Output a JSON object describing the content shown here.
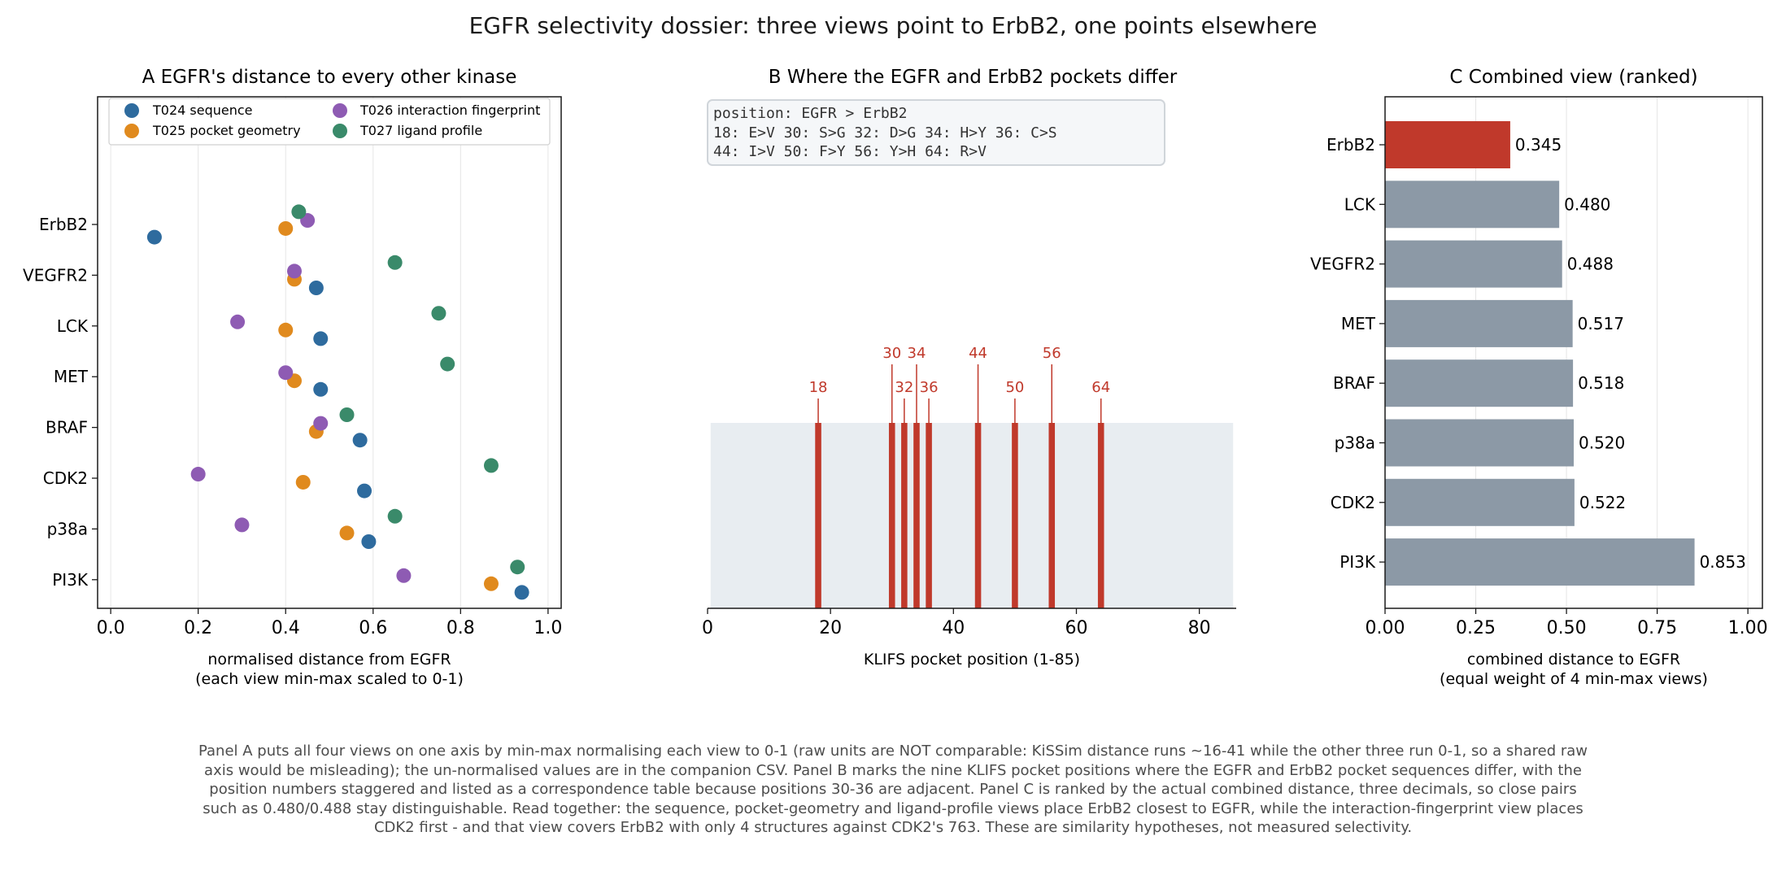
{
  "figure": {
    "title": "EGFR selectivity dossier: three views point to ErbB2, one points elsewhere",
    "caption": "Panel A puts all four views on one axis by min-max normalising each view to 0-1 (raw units are NOT comparable: KiSSim distance runs ~16-41 while the other three run 0-1, so a shared raw axis would be misleading); the un-normalised values are in the companion CSV. Panel B marks the nine KLIFS pocket positions where the EGFR and ErbB2 pocket sequences differ, with the position numbers staggered and listed as a correspondence table because positions 30-36 are adjacent. Panel C is ranked by the actual combined distance, three decimals, so close pairs such as 0.480/0.488 stay distinguishable. Read together: the sequence, pocket-geometry and ligand-profile views place ErbB2 closest to EGFR, while the interaction-fingerprint view places CDK2 first - and that view covers ErbB2 with only 4 structures against CDK2's 763. These are similarity hypotheses, not measured selectivity."
  },
  "chart_data": [
    {
      "panel": "A",
      "type": "scatter",
      "title": "A  EGFR's distance to every other kinase",
      "xlabel": "normalised distance from EGFR",
      "xlabel2": "(each view min-max scaled to 0-1)",
      "xlim": [
        -0.03,
        1.03
      ],
      "xticks": [
        "0.0",
        "0.2",
        "0.4",
        "0.6",
        "0.8",
        "1.0"
      ],
      "grid": "vertical",
      "legend_position": "top",
      "categories": [
        "ErbB2",
        "VEGFR2",
        "LCK",
        "MET",
        "BRAF",
        "CDK2",
        "p38a",
        "PI3K"
      ],
      "series": [
        {
          "name": "T024 sequence",
          "color": "#2e6b9e",
          "offset": 0.25,
          "values": [
            0.1,
            0.47,
            0.48,
            0.48,
            0.57,
            0.58,
            0.59,
            0.94
          ]
        },
        {
          "name": "T025 pocket geometry",
          "color": "#e08a1e",
          "offset": 0.08,
          "values": [
            0.4,
            0.42,
            0.4,
            0.42,
            0.47,
            0.44,
            0.54,
            0.87
          ]
        },
        {
          "name": "T026 interaction fingerprint",
          "color": "#8e5bb3",
          "offset": -0.08,
          "values": [
            0.45,
            0.42,
            0.29,
            0.4,
            0.48,
            0.2,
            0.3,
            0.67
          ]
        },
        {
          "name": "T027 ligand profile",
          "color": "#3a8a6a",
          "offset": -0.25,
          "values": [
            0.43,
            0.65,
            0.75,
            0.77,
            0.54,
            0.87,
            0.65,
            0.93
          ]
        }
      ]
    },
    {
      "panel": "B",
      "type": "bar",
      "title": "B  Where the EGFR and ErbB2 pockets differ",
      "xlabel": "KLIFS pocket position (1-85)",
      "xlim": [
        0,
        86
      ],
      "xticks": [
        "0",
        "20",
        "40",
        "60",
        "80"
      ],
      "pocket_range": [
        1,
        85
      ],
      "positions": [
        18,
        30,
        32,
        34,
        36,
        44,
        50,
        56,
        64
      ],
      "label_row": [
        "low",
        "high",
        "low",
        "high",
        "low",
        "high",
        "low",
        "high",
        "low"
      ],
      "position_labels": [
        "18",
        "30",
        "32",
        "34",
        "36",
        "44",
        "50",
        "56",
        "64"
      ],
      "bar_color": "#c0392b",
      "band_color": "#e8edf1",
      "table_lines": [
        "position: EGFR > ErbB2",
        "18: E>V  30: S>G  32: D>G  34: H>Y  36: C>S",
        "44: I>V  50: F>Y  56: Y>H  64: R>V"
      ]
    },
    {
      "panel": "C",
      "type": "bar",
      "orientation": "horizontal",
      "title": "C  Combined view (ranked)",
      "xlabel": "combined distance to EGFR",
      "xlabel2": "(equal weight of 4 min-max views)",
      "xlim": [
        0,
        1.04
      ],
      "xticks": [
        "0.00",
        "0.25",
        "0.50",
        "0.75",
        "1.00"
      ],
      "grid": "vertical",
      "categories": [
        "ErbB2",
        "LCK",
        "VEGFR2",
        "MET",
        "BRAF",
        "p38a",
        "CDK2",
        "PI3K"
      ],
      "values": [
        0.345,
        0.48,
        0.488,
        0.517,
        0.518,
        0.52,
        0.522,
        0.853
      ],
      "value_labels": [
        "0.345",
        "0.480",
        "0.488",
        "0.517",
        "0.518",
        "0.520",
        "0.522",
        "0.853"
      ],
      "highlight_color": "#c0392b",
      "bar_color": "#8c99a6"
    }
  ]
}
